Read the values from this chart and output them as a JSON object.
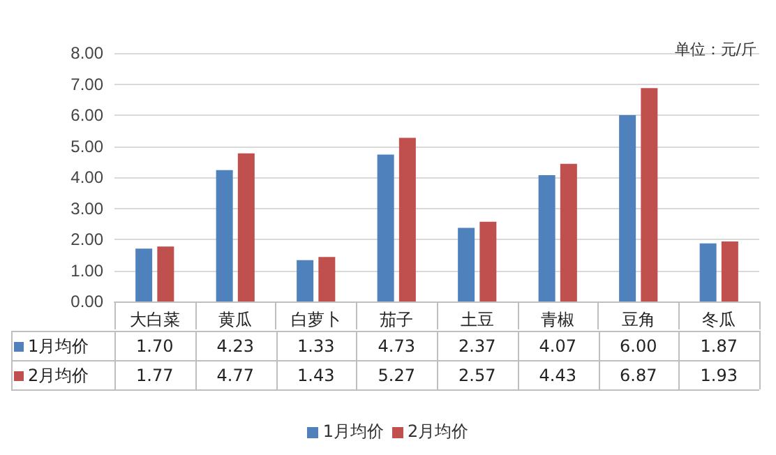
{
  "chart_data": {
    "type": "bar",
    "categories": [
      "大白菜",
      "黄瓜",
      "白萝卜",
      "茄子",
      "土豆",
      "青椒",
      "豆角",
      "冬瓜"
    ],
    "series": [
      {
        "name": "1月均价",
        "color": "#4f81bd",
        "values": [
          1.7,
          4.23,
          1.33,
          4.73,
          2.37,
          4.07,
          6.0,
          1.87
        ],
        "value_labels": [
          "1.70",
          "4.23",
          "1.33",
          "4.73",
          "2.37",
          "4.07",
          "6.00",
          "1.87"
        ]
      },
      {
        "name": "2月均价",
        "color": "#c0504d",
        "values": [
          1.77,
          4.77,
          1.43,
          5.27,
          2.57,
          4.43,
          6.87,
          1.93
        ],
        "value_labels": [
          "1.77",
          "4.77",
          "1.43",
          "5.27",
          "2.57",
          "4.43",
          "6.87",
          "1.93"
        ]
      }
    ],
    "ylim": [
      0,
      8
    ],
    "yticks": [
      {
        "value": 0,
        "label": "0.00"
      },
      {
        "value": 1,
        "label": "1.00"
      },
      {
        "value": 2,
        "label": "2.00"
      },
      {
        "value": 3,
        "label": "3.00"
      },
      {
        "value": 4,
        "label": "4.00"
      },
      {
        "value": 5,
        "label": "5.00"
      },
      {
        "value": 6,
        "label": "6.00"
      },
      {
        "value": 7,
        "label": "7.00"
      },
      {
        "value": 8,
        "label": "8.00"
      }
    ],
    "grid": "y",
    "legend": "bottom",
    "annotations": [
      "单位：元/斤"
    ]
  }
}
